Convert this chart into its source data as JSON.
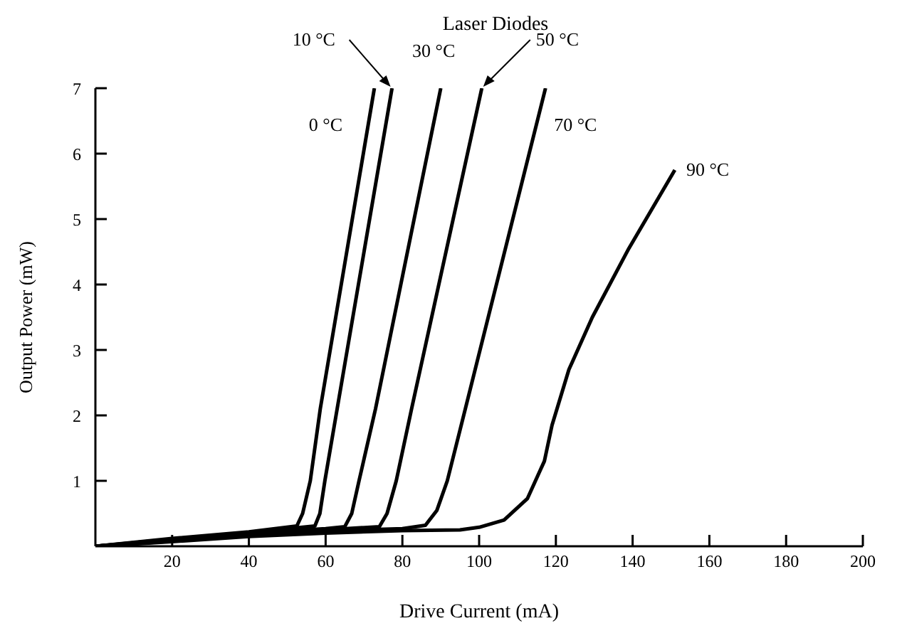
{
  "chart_data": {
    "type": "line",
    "title": "Laser Diodes",
    "xlabel": "Drive Current (mA)",
    "ylabel": "Output Power (mW)",
    "xlim": [
      0,
      200
    ],
    "ylim": [
      0,
      7
    ],
    "xticks": [
      20,
      40,
      60,
      80,
      100,
      120,
      140,
      160,
      180,
      200
    ],
    "yticks": [
      1,
      2,
      3,
      4,
      5,
      6,
      7
    ],
    "grid": false,
    "legend": false,
    "marker": "none",
    "line_style": "solid",
    "series": [
      {
        "name": "0 °C",
        "color": "#000000",
        "x": [
          0,
          20,
          40,
          52.5,
          54,
          56,
          58.6,
          72.7
        ],
        "values": [
          0,
          0.12,
          0.22,
          0.31,
          0.5,
          1,
          2.1,
          7
        ]
      },
      {
        "name": "10 °C",
        "color": "#000000",
        "x": [
          0,
          20,
          40,
          57.2,
          58.5,
          59.8,
          63,
          77.3
        ],
        "values": [
          0,
          0.11,
          0.21,
          0.31,
          0.5,
          1,
          2.1,
          7
        ]
      },
      {
        "name": "30 °C",
        "color": "#000000",
        "x": [
          0,
          20,
          40,
          60,
          65,
          66.8,
          68.7,
          73,
          90
        ],
        "values": [
          0,
          0.1,
          0.2,
          0.27,
          0.3,
          0.5,
          1,
          2.1,
          7
        ]
      },
      {
        "name": "50 °C",
        "color": "#000000",
        "x": [
          0,
          20,
          40,
          60,
          74,
          76,
          78.4,
          82.4,
          100.7
        ],
        "values": [
          0,
          0.09,
          0.19,
          0.25,
          0.3,
          0.5,
          1,
          2.1,
          7
        ]
      },
      {
        "name": "70 °C",
        "color": "#000000",
        "x": [
          0,
          20,
          40,
          60,
          80,
          86,
          89,
          91.7,
          96.4,
          117.3
        ],
        "values": [
          0,
          0.08,
          0.17,
          0.23,
          0.27,
          0.32,
          0.55,
          1,
          2.1,
          7
        ]
      },
      {
        "name": "90 °C",
        "color": "#000000",
        "x": [
          0,
          20,
          40,
          60,
          80,
          95,
          100,
          106.5,
          112.6,
          117,
          119,
          123.4,
          129.5,
          139,
          146,
          151
        ],
        "values": [
          0,
          0.07,
          0.15,
          0.2,
          0.24,
          0.25,
          0.29,
          0.4,
          0.73,
          1.3,
          1.85,
          2.7,
          3.5,
          4.55,
          5.25,
          5.75
        ]
      }
    ]
  }
}
